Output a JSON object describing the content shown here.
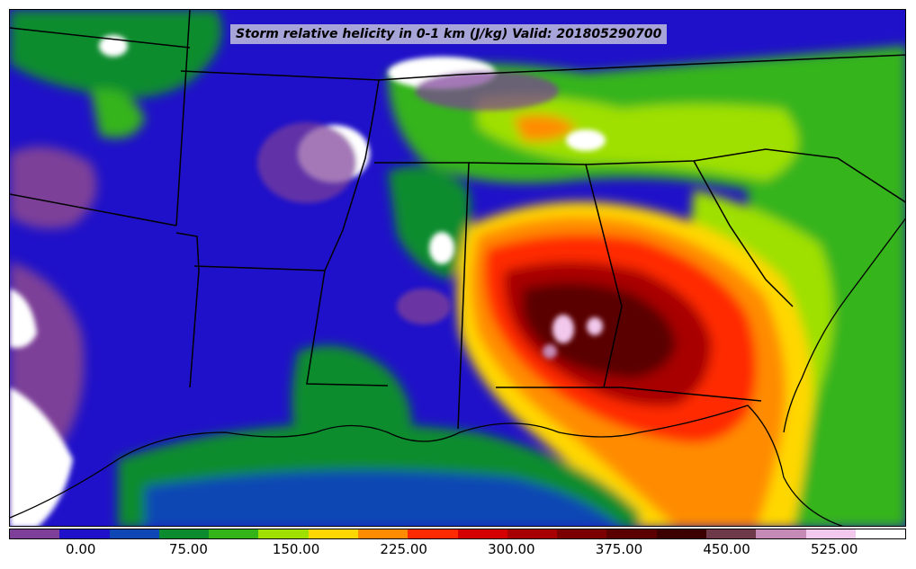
{
  "title": "Storm relative helicity in 0-1 km (J/kg) Valid: 201805290700",
  "colorbar": {
    "colors": [
      "#7d3f98",
      "#1f11c9",
      "#0f47b4",
      "#0c8c2f",
      "#35b41a",
      "#9fe000",
      "#ffd700",
      "#ff8c00",
      "#ff2a00",
      "#d40000",
      "#a80000",
      "#7d0000",
      "#5a0000",
      "#3c0000",
      "#6e3a4a",
      "#c58ab5",
      "#f2c8ec",
      "#ffffff"
    ],
    "tick_labels": [
      {
        "text": "0.00",
        "value": 0
      },
      {
        "text": "75.00",
        "value": 75
      },
      {
        "text": "150.00",
        "value": 150
      },
      {
        "text": "225.00",
        "value": 225
      },
      {
        "text": "300.00",
        "value": 300
      },
      {
        "text": "375.00",
        "value": 375
      },
      {
        "text": "450.00",
        "value": 450
      },
      {
        "text": "525.00",
        "value": 525
      }
    ],
    "range": [
      -50,
      575
    ]
  },
  "map": {
    "background_color": "#1f11c9",
    "border_color": "#000000"
  }
}
